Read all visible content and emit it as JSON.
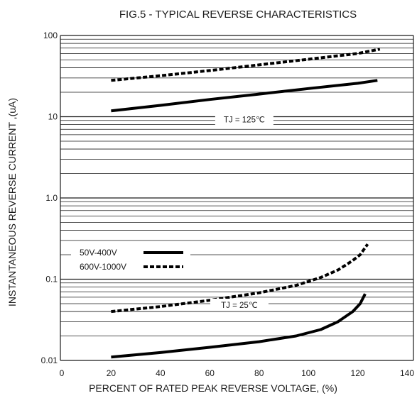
{
  "chart_data": {
    "type": "line",
    "title": "FIG.5 - TYPICAL REVERSE CHARACTERISTICS",
    "xlabel": "PERCENT OF RATED PEAK REVERSE VOLTAGE, (%)",
    "ylabel": "INSTANTANEOUS REVERSE CURRENT ,(uA)",
    "x_scale": "linear",
    "y_scale": "log",
    "xlim": [
      0,
      140
    ],
    "ylim": [
      0.01,
      100
    ],
    "x_ticks": [
      {
        "value": 0,
        "label": "0"
      },
      {
        "value": 20,
        "label": "20"
      },
      {
        "value": 40,
        "label": "40"
      },
      {
        "value": 60,
        "label": "60"
      },
      {
        "value": 80,
        "label": "80"
      },
      {
        "value": 100,
        "label": "100"
      },
      {
        "value": 120,
        "label": "120"
      },
      {
        "value": 140,
        "label": "140"
      }
    ],
    "y_ticks": [
      {
        "value": 0.01,
        "label": "0.01"
      },
      {
        "value": 0.1,
        "label": "0.1"
      },
      {
        "value": 1,
        "label": "1.0"
      },
      {
        "value": 10,
        "label": "10"
      },
      {
        "value": 100,
        "label": "100"
      }
    ],
    "grid": {
      "horizontal_log_minor": true,
      "vertical": false
    },
    "annotations": [
      {
        "text": "TJ = 125℃",
        "x": 74,
        "y": 9.2
      },
      {
        "text": "TJ = 25℃",
        "x": 72,
        "y": 0.048
      }
    ],
    "legend": {
      "placement": "center-left",
      "entries": [
        {
          "label": "50V-400V",
          "style": "solid"
        },
        {
          "label": "600V-1000V",
          "style": "dashed"
        }
      ]
    },
    "series": [
      {
        "name": "50V-400V",
        "condition": "TJ = 125℃",
        "style": "solid",
        "x": [
          20,
          40,
          60,
          80,
          100,
          120,
          128
        ],
        "y": [
          11.8,
          13.8,
          16.3,
          19.0,
          22.2,
          25.8,
          28.0
        ]
      },
      {
        "name": "600V-1000V",
        "condition": "TJ = 125℃",
        "style": "dashed",
        "x": [
          20,
          40,
          60,
          80,
          100,
          120,
          129
        ],
        "y": [
          28.0,
          32.0,
          37.0,
          43.5,
          51.0,
          60.0,
          68.0
        ]
      },
      {
        "name": "50V-400V",
        "condition": "TJ = 25℃",
        "style": "solid",
        "x": [
          20,
          40,
          60,
          80,
          95,
          105,
          112,
          118,
          121,
          123
        ],
        "y": [
          0.011,
          0.0125,
          0.0145,
          0.017,
          0.02,
          0.024,
          0.03,
          0.04,
          0.05,
          0.066
        ]
      },
      {
        "name": "600V-1000V",
        "condition": "TJ = 25℃",
        "style": "dashed",
        "x": [
          20,
          40,
          60,
          80,
          95,
          105,
          112,
          118,
          121,
          124
        ],
        "y": [
          0.04,
          0.046,
          0.055,
          0.068,
          0.084,
          0.105,
          0.13,
          0.17,
          0.2,
          0.27
        ]
      }
    ]
  }
}
